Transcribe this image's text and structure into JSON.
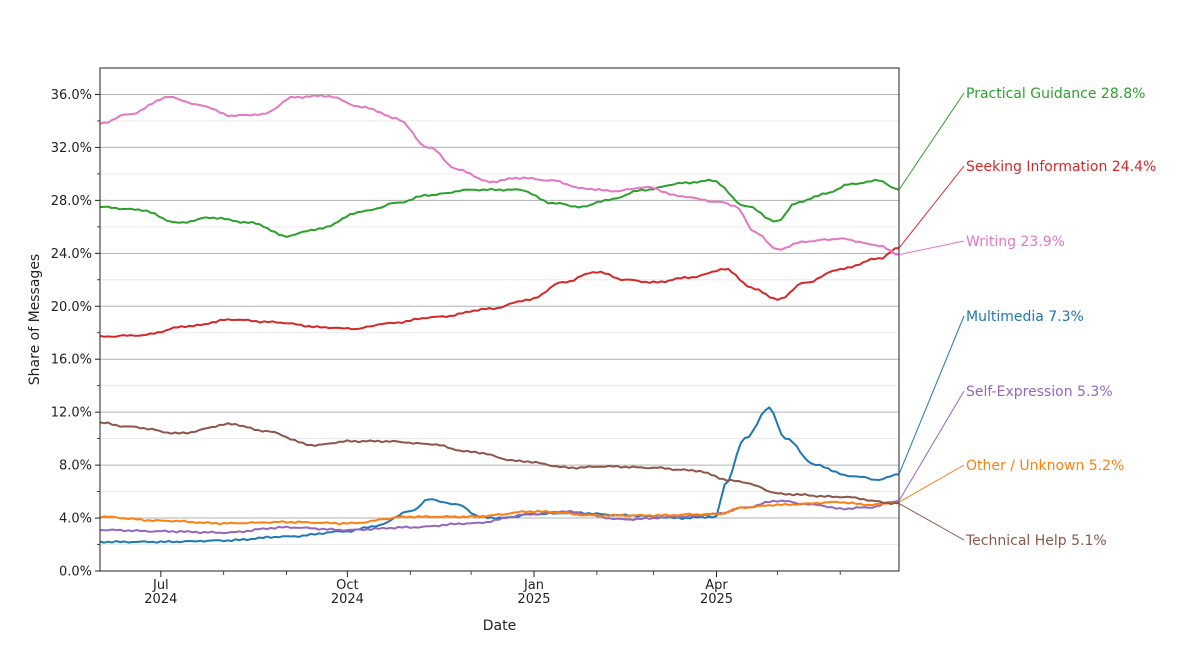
{
  "chart_data": {
    "type": "line",
    "xlabel": "Date",
    "ylabel": "Share of Messages",
    "xlim": [
      "2024-06-01",
      "2025-06-30"
    ],
    "ylim": [
      0,
      38
    ],
    "y_ticks": [
      0,
      4,
      8,
      12,
      16,
      20,
      24,
      28,
      32,
      36
    ],
    "y_tick_labels": [
      "0.0%",
      "4.0%",
      "8.0%",
      "12.0%",
      "16.0%",
      "20.0%",
      "24.0%",
      "28.0%",
      "32.0%",
      "36.0%"
    ],
    "x_major_ticks": [
      {
        "date": "2024-07-01",
        "label": "Jul\n2024"
      },
      {
        "date": "2024-10-01",
        "label": "Oct\n2024"
      },
      {
        "date": "2025-01-01",
        "label": "Jan\n2025"
      },
      {
        "date": "2025-04-01",
        "label": "Apr\n2025"
      }
    ],
    "x_minor_ticks": [
      "2024-08-01",
      "2024-09-01",
      "2024-11-01",
      "2024-12-01",
      "2025-02-01",
      "2025-03-01",
      "2025-05-01",
      "2025-06-01"
    ],
    "grid": "horizontal",
    "legend": "right, labels at line ends",
    "series": [
      {
        "name": "Practical Guidance",
        "final_label": "28.8%",
        "color": "#2ca02c",
        "points": [
          [
            "2024-06-01",
            27.5
          ],
          [
            "2024-06-20",
            27.3
          ],
          [
            "2024-07-10",
            26.3
          ],
          [
            "2024-07-25",
            26.7
          ],
          [
            "2024-08-15",
            26.3
          ],
          [
            "2024-09-01",
            25.3
          ],
          [
            "2024-09-15",
            25.8
          ],
          [
            "2024-10-10",
            27.2
          ],
          [
            "2024-10-25",
            27.8
          ],
          [
            "2024-11-10",
            28.4
          ],
          [
            "2024-12-01",
            28.8
          ],
          [
            "2024-12-25",
            28.8
          ],
          [
            "2025-01-10",
            27.8
          ],
          [
            "2025-01-25",
            27.5
          ],
          [
            "2025-02-05",
            28.0
          ],
          [
            "2025-02-25",
            28.8
          ],
          [
            "2025-03-15",
            29.3
          ],
          [
            "2025-03-30",
            29.5
          ],
          [
            "2025-04-15",
            27.6
          ],
          [
            "2025-05-01",
            26.4
          ],
          [
            "2025-05-10",
            27.8
          ],
          [
            "2025-05-25",
            28.5
          ],
          [
            "2025-06-05",
            29.2
          ],
          [
            "2025-06-20",
            29.5
          ],
          [
            "2025-06-30",
            28.8
          ]
        ]
      },
      {
        "name": "Seeking Information",
        "final_label": "24.4%",
        "color": "#d62728",
        "points": [
          [
            "2024-06-01",
            17.7
          ],
          [
            "2024-06-20",
            17.8
          ],
          [
            "2024-07-15",
            18.5
          ],
          [
            "2024-08-05",
            19.0
          ],
          [
            "2024-08-25",
            18.8
          ],
          [
            "2024-09-20",
            18.4
          ],
          [
            "2024-10-05",
            18.3
          ],
          [
            "2024-10-20",
            18.7
          ],
          [
            "2024-11-15",
            19.2
          ],
          [
            "2024-12-10",
            19.8
          ],
          [
            "2024-12-30",
            20.5
          ],
          [
            "2025-01-15",
            21.8
          ],
          [
            "2025-02-01",
            22.6
          ],
          [
            "2025-02-15",
            22.0
          ],
          [
            "2025-03-01",
            21.8
          ],
          [
            "2025-03-20",
            22.2
          ],
          [
            "2025-04-05",
            22.8
          ],
          [
            "2025-04-20",
            21.3
          ],
          [
            "2025-05-01",
            20.5
          ],
          [
            "2025-05-15",
            21.8
          ],
          [
            "2025-06-01",
            22.8
          ],
          [
            "2025-06-20",
            23.6
          ],
          [
            "2025-06-30",
            24.4
          ]
        ]
      },
      {
        "name": "Writing",
        "final_label": "23.9%",
        "color": "#e377c2",
        "points": [
          [
            "2024-06-01",
            33.8
          ],
          [
            "2024-06-15",
            34.5
          ],
          [
            "2024-07-05",
            35.8
          ],
          [
            "2024-07-20",
            35.2
          ],
          [
            "2024-08-05",
            34.4
          ],
          [
            "2024-08-20",
            34.5
          ],
          [
            "2024-09-05",
            35.8
          ],
          [
            "2024-09-20",
            35.9
          ],
          [
            "2024-10-10",
            35.0
          ],
          [
            "2024-10-25",
            34.2
          ],
          [
            "2024-11-10",
            32.0
          ],
          [
            "2024-11-25",
            30.3
          ],
          [
            "2024-12-10",
            29.4
          ],
          [
            "2024-12-25",
            29.7
          ],
          [
            "2025-01-10",
            29.5
          ],
          [
            "2025-01-25",
            28.9
          ],
          [
            "2025-02-10",
            28.7
          ],
          [
            "2025-02-25",
            29.0
          ],
          [
            "2025-03-15",
            28.3
          ],
          [
            "2025-04-01",
            27.9
          ],
          [
            "2025-04-10",
            27.6
          ],
          [
            "2025-04-20",
            25.6
          ],
          [
            "2025-05-01",
            24.3
          ],
          [
            "2025-05-15",
            24.9
          ],
          [
            "2025-06-01",
            25.1
          ],
          [
            "2025-06-20",
            24.6
          ],
          [
            "2025-06-30",
            23.9
          ]
        ]
      },
      {
        "name": "Multimedia",
        "final_label": "7.3%",
        "color": "#1f77b4",
        "points": [
          [
            "2024-06-01",
            2.2
          ],
          [
            "2024-07-01",
            2.2
          ],
          [
            "2024-08-01",
            2.3
          ],
          [
            "2024-09-01",
            2.6
          ],
          [
            "2024-10-01",
            3.0
          ],
          [
            "2024-10-15",
            3.4
          ],
          [
            "2024-11-01",
            4.5
          ],
          [
            "2024-11-10",
            5.4
          ],
          [
            "2024-11-25",
            5.0
          ],
          [
            "2024-12-05",
            4.1
          ],
          [
            "2024-12-15",
            4.0
          ],
          [
            "2025-01-01",
            4.3
          ],
          [
            "2025-01-20",
            4.4
          ],
          [
            "2025-02-15",
            4.2
          ],
          [
            "2025-03-15",
            4.0
          ],
          [
            "2025-04-01",
            4.1
          ],
          [
            "2025-04-05",
            6.5
          ],
          [
            "2025-04-15",
            10.0
          ],
          [
            "2025-04-27",
            12.3
          ],
          [
            "2025-05-05",
            10.0
          ],
          [
            "2025-05-20",
            8.0
          ],
          [
            "2025-06-05",
            7.2
          ],
          [
            "2025-06-20",
            6.9
          ],
          [
            "2025-06-30",
            7.3
          ]
        ]
      },
      {
        "name": "Self-Expression",
        "final_label": "5.3%",
        "color": "#9467bd",
        "points": [
          [
            "2024-06-01",
            3.1
          ],
          [
            "2024-07-01",
            3.0
          ],
          [
            "2024-08-01",
            2.9
          ],
          [
            "2024-09-01",
            3.3
          ],
          [
            "2024-10-01",
            3.1
          ],
          [
            "2024-11-01",
            3.3
          ],
          [
            "2024-12-01",
            3.6
          ],
          [
            "2025-01-01",
            4.3
          ],
          [
            "2025-01-15",
            4.5
          ],
          [
            "2025-02-15",
            3.9
          ],
          [
            "2025-03-15",
            4.1
          ],
          [
            "2025-04-01",
            4.3
          ],
          [
            "2025-04-15",
            4.8
          ],
          [
            "2025-05-01",
            5.3
          ],
          [
            "2025-05-20",
            5.0
          ],
          [
            "2025-06-01",
            4.7
          ],
          [
            "2025-06-15",
            4.8
          ],
          [
            "2025-06-30",
            5.3
          ]
        ]
      },
      {
        "name": "Other / Unknown",
        "final_label": "5.2%",
        "color": "#ff7f0e",
        "points": [
          [
            "2024-06-01",
            4.1
          ],
          [
            "2024-07-01",
            3.8
          ],
          [
            "2024-08-01",
            3.6
          ],
          [
            "2024-09-01",
            3.7
          ],
          [
            "2024-10-01",
            3.6
          ],
          [
            "2024-11-01",
            4.1
          ],
          [
            "2024-12-01",
            4.1
          ],
          [
            "2025-01-01",
            4.5
          ],
          [
            "2025-02-01",
            4.2
          ],
          [
            "2025-03-01",
            4.2
          ],
          [
            "2025-04-01",
            4.3
          ],
          [
            "2025-04-15",
            4.8
          ],
          [
            "2025-05-01",
            5.0
          ],
          [
            "2025-06-01",
            5.2
          ],
          [
            "2025-06-15",
            5.0
          ],
          [
            "2025-06-30",
            5.2
          ]
        ]
      },
      {
        "name": "Technical Help",
        "final_label": "5.1%",
        "color": "#8c564b",
        "points": [
          [
            "2024-06-01",
            11.2
          ],
          [
            "2024-06-15",
            10.9
          ],
          [
            "2024-07-10",
            10.4
          ],
          [
            "2024-08-05",
            11.1
          ],
          [
            "2024-08-20",
            10.6
          ],
          [
            "2024-09-15",
            9.5
          ],
          [
            "2024-10-01",
            9.8
          ],
          [
            "2024-10-20",
            9.8
          ],
          [
            "2024-11-10",
            9.6
          ],
          [
            "2024-12-01",
            9.0
          ],
          [
            "2024-12-25",
            8.3
          ],
          [
            "2025-01-20",
            7.8
          ],
          [
            "2025-02-05",
            7.9
          ],
          [
            "2025-03-01",
            7.8
          ],
          [
            "2025-03-20",
            7.6
          ],
          [
            "2025-04-10",
            6.8
          ],
          [
            "2025-05-05",
            5.8
          ],
          [
            "2025-06-01",
            5.6
          ],
          [
            "2025-06-30",
            5.1
          ]
        ]
      }
    ]
  }
}
